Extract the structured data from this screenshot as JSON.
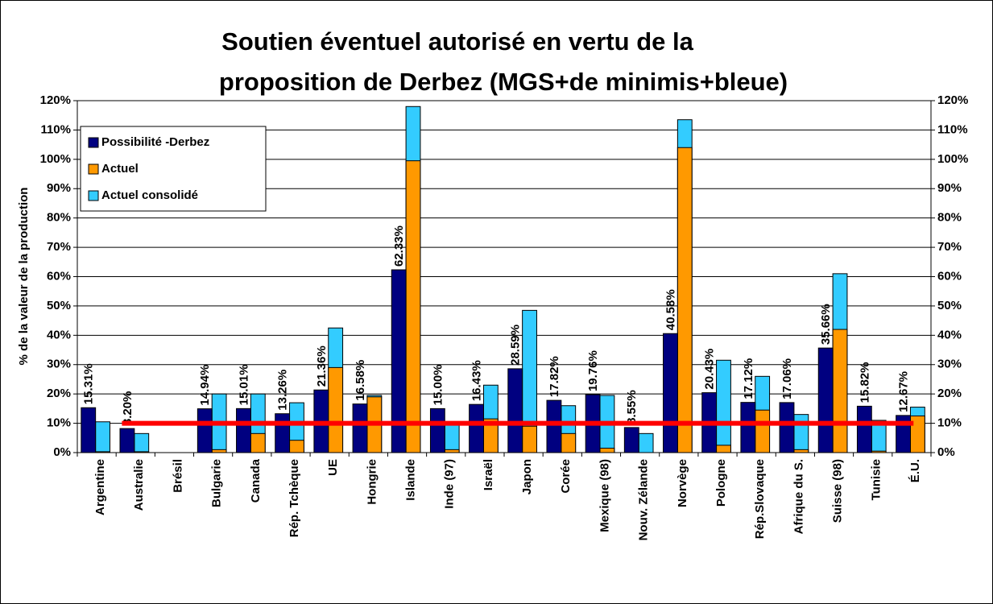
{
  "chart_data": {
    "type": "bar",
    "title_lines": [
      "Soutien éventuel autorisé en vertu de la",
      "proposition de Derbez (MGS+de minimis+bleue)"
    ],
    "y_label": "% de la valeur de la production",
    "categories": [
      "Argentine",
      "Australie",
      "Brésil",
      "Bulgarie",
      "Canada",
      "Rép. Tchèque",
      "UE",
      "Hongrie",
      "Islande",
      "Inde (97)",
      "Israël",
      "Japon",
      "Corée",
      "Mexique (98)",
      "Nouv. Zélande",
      "Norvège",
      "Pologne",
      "Rép.Slovaque",
      "Afrique du S.",
      "Suisse (98)",
      "Tunisie",
      "É.U."
    ],
    "series": [
      {
        "name": "Possibilité -Derbez",
        "color": "#000080",
        "values": [
          15.31,
          8.2,
          null,
          14.94,
          15.01,
          13.26,
          21.36,
          16.58,
          62.33,
          15.0,
          16.43,
          28.59,
          17.82,
          19.76,
          8.55,
          40.58,
          20.43,
          17.12,
          17.06,
          35.66,
          15.82,
          12.67
        ],
        "value_labels": [
          "15.31%",
          "8.20%",
          null,
          "14.94%",
          "15.01%",
          "13.26%",
          "21.36%",
          "16.58%",
          "62.33%",
          "15.00%",
          "16.43%",
          "28.59%",
          "17.82%",
          "19.76%",
          "8.55%",
          "40.58%",
          "20.43%",
          "17.12%",
          "17.06%",
          "35.66%",
          "15.82%",
          "12.67%"
        ]
      },
      {
        "name": "Actuel",
        "color": "#ff9900",
        "values": [
          0.3,
          0.3,
          null,
          1,
          6.5,
          4.2,
          29,
          19,
          99.5,
          1,
          11.5,
          9,
          6.5,
          1.5,
          0,
          104,
          2.5,
          14.5,
          1,
          42,
          0.5,
          12.5
        ]
      },
      {
        "name": "Actuel consolidé",
        "color": "#33ccff",
        "values": [
          10.5,
          6.5,
          null,
          20,
          20,
          17,
          42.5,
          19.5,
          118,
          10,
          23,
          48.5,
          16,
          19.5,
          6.5,
          113.5,
          31.5,
          26,
          13,
          61,
          11,
          15.5
        ]
      }
    ],
    "reference_line": {
      "value": 10,
      "color": "#ff0000"
    },
    "ylim": [
      0,
      120
    ],
    "yticks": [
      {
        "value": 0,
        "label": "0%"
      },
      {
        "value": 10,
        "label": "10%"
      },
      {
        "value": 20,
        "label": "20%"
      },
      {
        "value": 30,
        "label": "30%"
      },
      {
        "value": 40,
        "label": "40%"
      },
      {
        "value": 50,
        "label": "50%"
      },
      {
        "value": 60,
        "label": "60%"
      },
      {
        "value": 70,
        "label": "70%"
      },
      {
        "value": 80,
        "label": "80%"
      },
      {
        "value": 90,
        "label": "90%"
      },
      {
        "value": 100,
        "label": "100%"
      },
      {
        "value": 110,
        "label": "110%"
      },
      {
        "value": 120,
        "label": "120%"
      }
    ],
    "y2lim": [
      0,
      120
    ],
    "y2ticks": [
      {
        "value": 0,
        "label": "0%"
      },
      {
        "value": 10,
        "label": "10%"
      },
      {
        "value": 20,
        "label": "20%"
      },
      {
        "value": 30,
        "label": "30%"
      },
      {
        "value": 40,
        "label": "40%"
      },
      {
        "value": 50,
        "label": "50%"
      },
      {
        "value": 60,
        "label": "60%"
      },
      {
        "value": 70,
        "label": "70%"
      },
      {
        "value": 80,
        "label": "80%"
      },
      {
        "value": 90,
        "label": "90%"
      },
      {
        "value": 100,
        "label": "100%"
      },
      {
        "value": 110,
        "label": "110%"
      },
      {
        "value": 120,
        "label": "120%"
      }
    ],
    "grid": true,
    "legend": "top-left"
  }
}
